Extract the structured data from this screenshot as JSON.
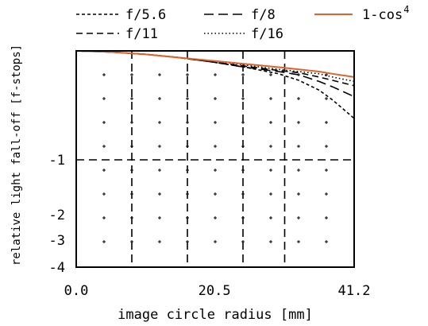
{
  "chart_data": {
    "type": "line",
    "title": "",
    "xlabel": "image circle radius [mm]",
    "ylabel": "relative light fall-off [f-stops]",
    "xlim": [
      0.0,
      41.2
    ],
    "x_ticks": [
      {
        "value": 0.0,
        "label": "0.0"
      },
      {
        "value": 20.5,
        "label": "20.5"
      },
      {
        "value": 41.2,
        "label": "41.2"
      }
    ],
    "y_ticks": [
      {
        "value": -1,
        "label": "-1"
      },
      {
        "value": -2,
        "label": "-2"
      },
      {
        "value": -3,
        "label": "-3"
      },
      {
        "value": -4,
        "label": "-4"
      }
    ],
    "y_scale": "log-compressed (0 at top, -1 at middle, -4 at bottom)",
    "grid": true,
    "legend_position": "top",
    "series": [
      {
        "name": "f/5.6",
        "style": "short-dash",
        "color": "#000000",
        "x": [
          0,
          5,
          10,
          15,
          20,
          25,
          30,
          33,
          36,
          38,
          41.2
        ],
        "y": [
          0,
          -0.01,
          -0.03,
          -0.06,
          -0.1,
          -0.15,
          -0.21,
          -0.27,
          -0.36,
          -0.45,
          -0.62
        ]
      },
      {
        "name": "f/8",
        "style": "long-dash",
        "color": "#000000",
        "x": [
          0,
          5,
          10,
          15,
          20,
          25,
          30,
          33,
          36,
          38,
          41.2
        ],
        "y": [
          0,
          -0.01,
          -0.03,
          -0.06,
          -0.1,
          -0.15,
          -0.19,
          -0.22,
          -0.28,
          -0.33,
          -0.42
        ]
      },
      {
        "name": "f/11",
        "style": "dash",
        "color": "#000000",
        "x": [
          0,
          5,
          10,
          15,
          20,
          25,
          30,
          33,
          36,
          38,
          41.2
        ],
        "y": [
          0,
          -0.01,
          -0.03,
          -0.06,
          -0.1,
          -0.14,
          -0.18,
          -0.2,
          -0.24,
          -0.27,
          -0.32
        ]
      },
      {
        "name": "f/16",
        "style": "dot",
        "color": "#000000",
        "x": [
          0,
          5,
          10,
          15,
          20,
          25,
          30,
          33,
          36,
          38,
          41.2
        ],
        "y": [
          0,
          -0.01,
          -0.03,
          -0.06,
          -0.09,
          -0.13,
          -0.17,
          -0.19,
          -0.21,
          -0.24,
          -0.28
        ]
      },
      {
        "name": "1-cos",
        "name_superscript": "4",
        "style": "solid",
        "color": "#e0622a",
        "x": [
          0,
          5,
          10,
          15,
          20,
          25,
          30,
          33,
          36,
          38,
          41.2
        ],
        "y": [
          0,
          -0.01,
          -0.03,
          -0.06,
          -0.09,
          -0.12,
          -0.15,
          -0.17,
          -0.19,
          -0.21,
          -0.24
        ]
      }
    ]
  }
}
